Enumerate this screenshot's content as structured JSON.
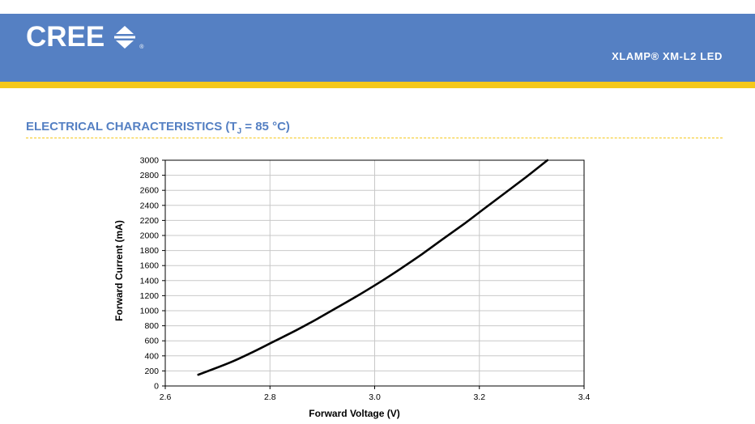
{
  "header": {
    "logo_text": "CREE",
    "logo_reg": "®",
    "product": "XLAMP® XM-L2 LED",
    "colors": {
      "band": "#5580c3",
      "stripe": "#f5c81a"
    }
  },
  "section": {
    "title_prefix": "ELECTRICAL CHARACTERISTICS (T",
    "title_sub": "J",
    "title_suffix": " = 85 °C)"
  },
  "chart_data": {
    "type": "line",
    "xlabel": "Forward Voltage (V)",
    "ylabel": "Forward Current (mA)",
    "xlim": [
      2.6,
      3.4
    ],
    "ylim": [
      0,
      3000
    ],
    "xticks": [
      "2.6",
      "2.8",
      "3.0",
      "3.2",
      "3.4"
    ],
    "yticks": [
      "0",
      "200",
      "400",
      "600",
      "800",
      "1000",
      "1200",
      "1400",
      "1600",
      "1800",
      "2000",
      "2200",
      "2400",
      "2600",
      "2800",
      "3000"
    ],
    "grid": true,
    "series": [
      {
        "color": "#000000",
        "x": [
          2.663,
          2.69,
          2.73,
          2.77,
          2.81,
          2.85,
          2.89,
          2.93,
          2.97,
          3.01,
          3.05,
          3.09,
          3.13,
          3.17,
          3.21,
          3.25,
          3.29,
          3.33
        ],
        "y": [
          150,
          220,
          330,
          460,
          600,
          740,
          890,
          1050,
          1210,
          1380,
          1560,
          1750,
          1950,
          2150,
          2360,
          2570,
          2780,
          3000
        ]
      }
    ]
  }
}
